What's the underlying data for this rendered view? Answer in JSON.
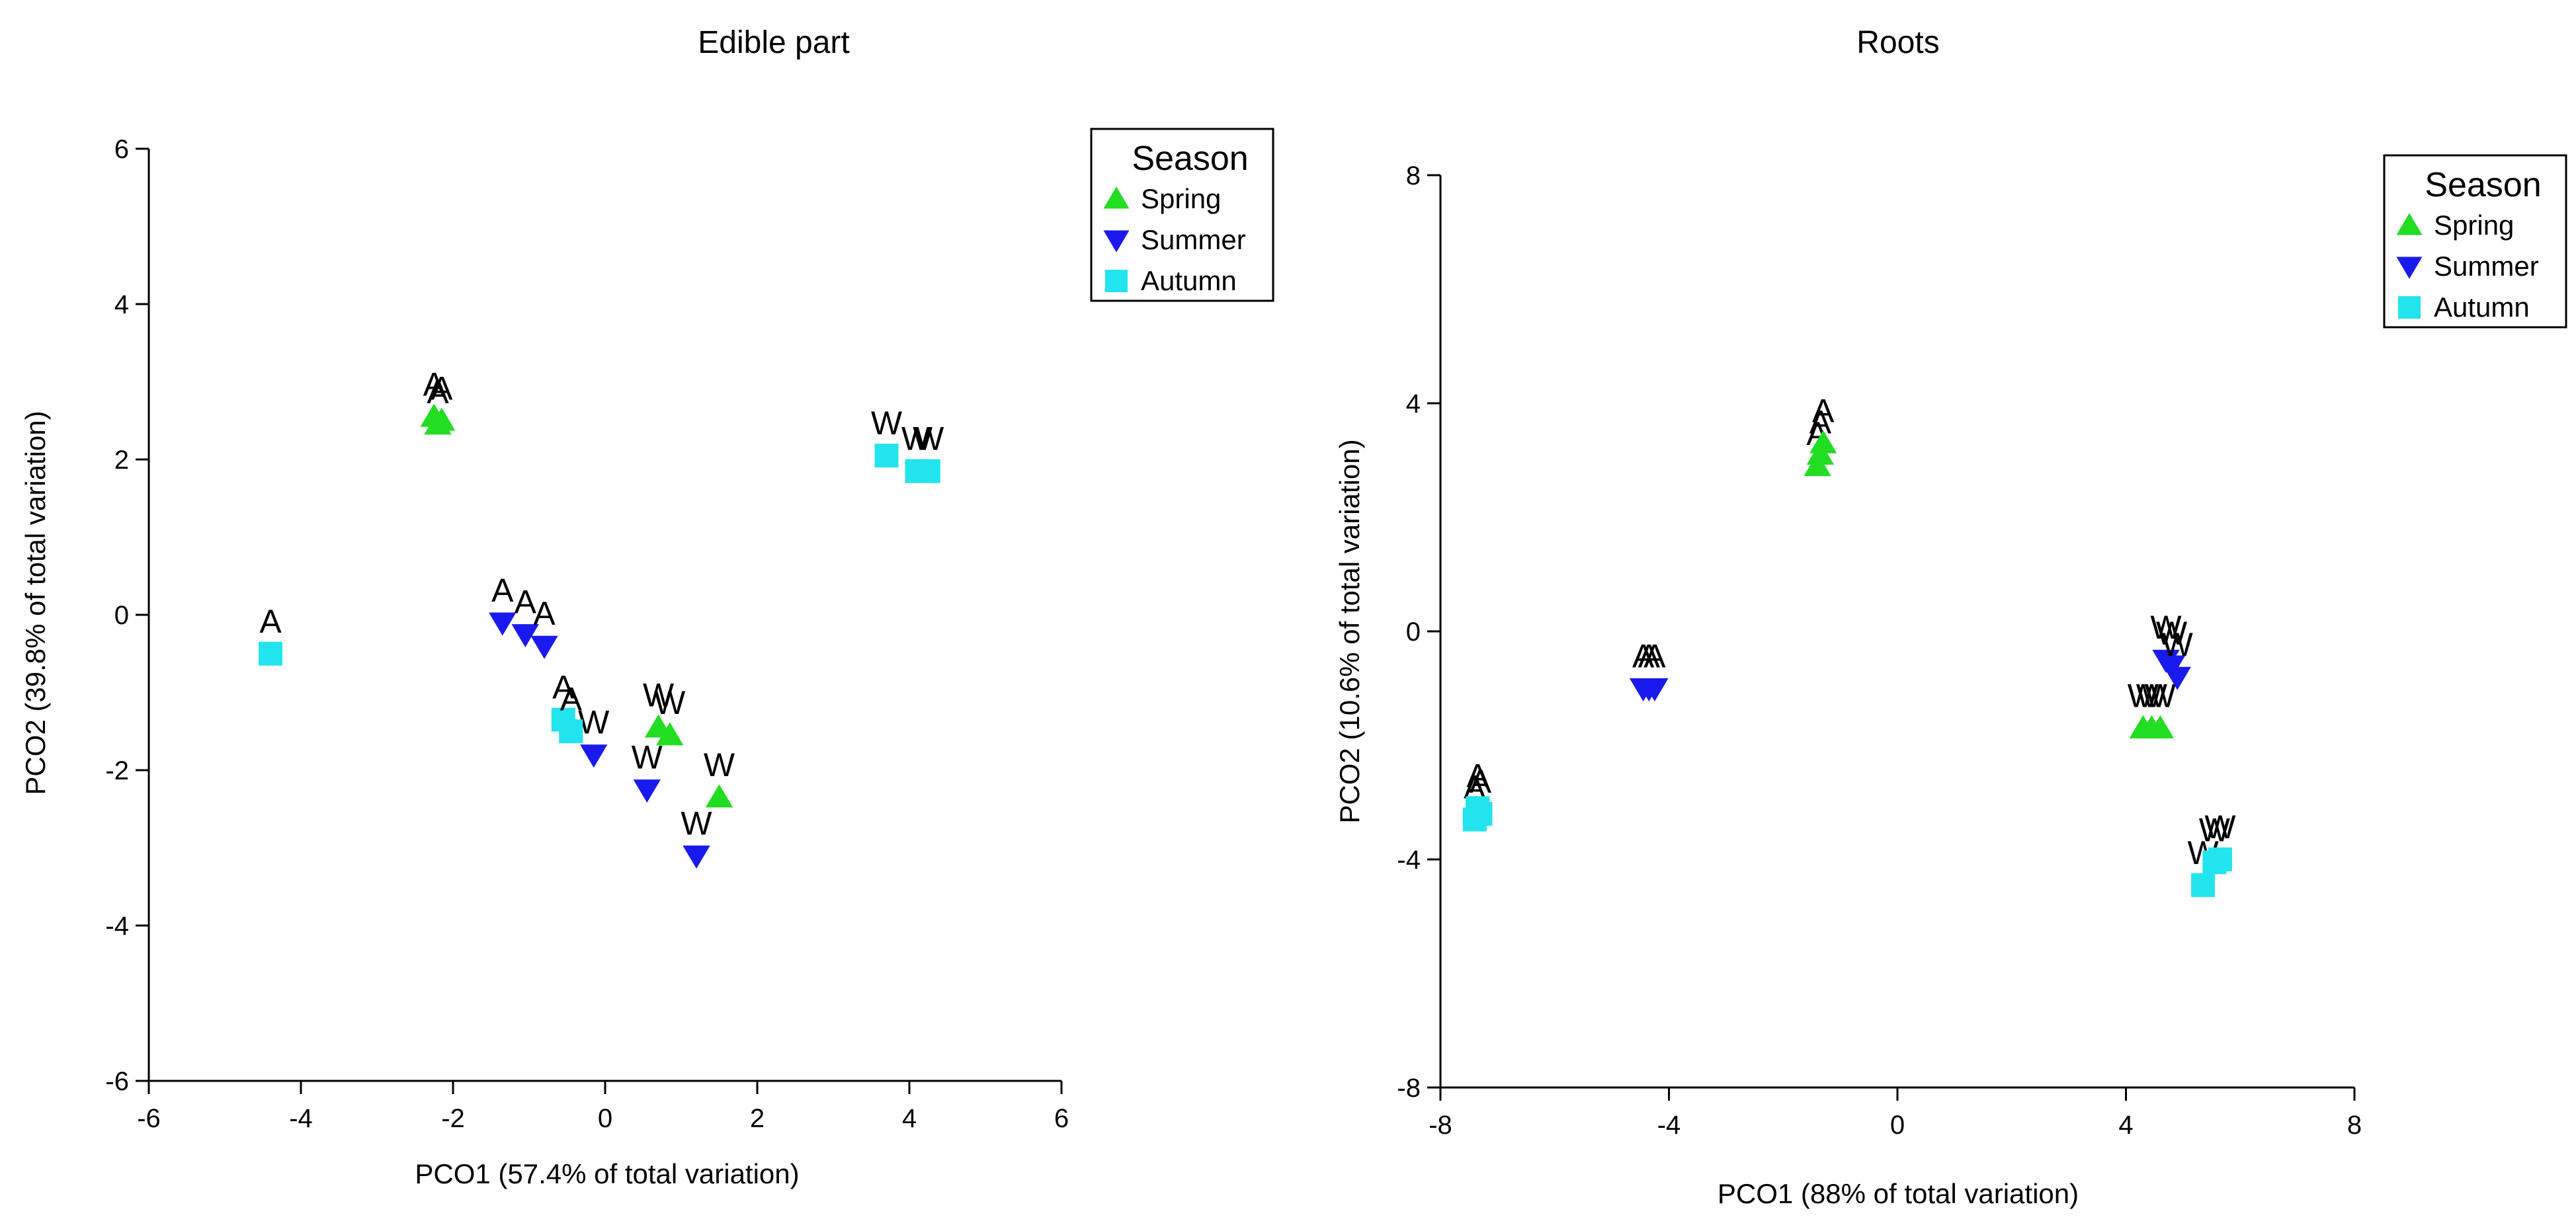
{
  "colors": {
    "spring": "#22dd22",
    "summer": "#1a1aee",
    "autumn": "#22e4ee"
  },
  "chart_data": [
    {
      "type": "scatter",
      "title": "Edible part",
      "xlabel": "PCO1 (57.4% of total variation)",
      "ylabel": "PCO2 (39.8% of total variation)",
      "xlim": [
        -6,
        6
      ],
      "ylim": [
        -6,
        6
      ],
      "xticks": [
        -6,
        -4,
        -2,
        0,
        2,
        4,
        6
      ],
      "yticks": [
        -6,
        -4,
        -2,
        0,
        2,
        4,
        6
      ],
      "xtick_labels": [
        "-6",
        "-4",
        "-2",
        "0",
        "2",
        "4",
        "6"
      ],
      "ytick_labels": [
        "-6",
        "-4",
        "-2",
        "0",
        "2",
        "4",
        "6"
      ],
      "legend": {
        "title": "Season",
        "placement": "top-right-outside",
        "entries": [
          {
            "label": "Spring",
            "marker": "triangle-up",
            "color_key": "spring"
          },
          {
            "label": "Summer",
            "marker": "triangle-down",
            "color_key": "summer"
          },
          {
            "label": "Autumn",
            "marker": "square",
            "color_key": "autumn"
          }
        ]
      },
      "series": [
        {
          "name": "Spring",
          "marker": "triangle-up",
          "color_key": "spring",
          "points": [
            {
              "x": -2.25,
              "y": 2.55,
              "label": "A"
            },
            {
              "x": -2.2,
              "y": 2.45,
              "label": "A"
            },
            {
              "x": -2.15,
              "y": 2.5,
              "label": "A"
            },
            {
              "x": 0.7,
              "y": -1.45,
              "label": "W"
            },
            {
              "x": 0.85,
              "y": -1.55,
              "label": "W"
            },
            {
              "x": 1.5,
              "y": -2.35,
              "label": "W"
            }
          ]
        },
        {
          "name": "Summer",
          "marker": "triangle-down",
          "color_key": "summer",
          "points": [
            {
              "x": -1.35,
              "y": -0.1,
              "label": "A"
            },
            {
              "x": -1.05,
              "y": -0.25,
              "label": "A"
            },
            {
              "x": -0.8,
              "y": -0.4,
              "label": "A"
            },
            {
              "x": -0.15,
              "y": -1.8,
              "label": "W"
            },
            {
              "x": 0.55,
              "y": -2.25,
              "label": "W"
            },
            {
              "x": 1.2,
              "y": -3.1,
              "label": "W"
            }
          ]
        },
        {
          "name": "Autumn",
          "marker": "square",
          "color_key": "autumn",
          "points": [
            {
              "x": -4.4,
              "y": -0.5,
              "label": "A"
            },
            {
              "x": -0.55,
              "y": -1.35,
              "label": "A"
            },
            {
              "x": -0.45,
              "y": -1.5,
              "label": "A"
            },
            {
              "x": 3.7,
              "y": 2.05,
              "label": "W"
            },
            {
              "x": 4.1,
              "y": 1.85,
              "label": "W"
            },
            {
              "x": 4.25,
              "y": 1.85,
              "label": "W"
            }
          ]
        }
      ]
    },
    {
      "type": "scatter",
      "title": "Roots",
      "xlabel": "PCO1 (88% of total variation)",
      "ylabel": "PCO2 (10.6% of total variation)",
      "xlim": [
        -8,
        8
      ],
      "ylim": [
        -8,
        8
      ],
      "xticks": [
        -8,
        -4,
        0,
        4,
        8
      ],
      "yticks": [
        -8,
        -4,
        0,
        4,
        8
      ],
      "xtick_labels": [
        "-8",
        "-4",
        "0",
        "4",
        "8"
      ],
      "ytick_labels": [
        "-8",
        "-4",
        "0",
        "4",
        "8"
      ],
      "legend": {
        "title": "Season",
        "placement": "top-right-inside",
        "entries": [
          {
            "label": "Spring",
            "marker": "triangle-up",
            "color_key": "spring"
          },
          {
            "label": "Summer",
            "marker": "triangle-down",
            "color_key": "summer"
          },
          {
            "label": "Autumn",
            "marker": "square",
            "color_key": "autumn"
          }
        ]
      },
      "series": [
        {
          "name": "Spring",
          "marker": "triangle-up",
          "color_key": "spring",
          "points": [
            {
              "x": -1.4,
              "y": 2.9,
              "label": "A"
            },
            {
              "x": -1.35,
              "y": 3.1,
              "label": "A"
            },
            {
              "x": -1.3,
              "y": 3.3,
              "label": "A"
            },
            {
              "x": 4.3,
              "y": -1.7,
              "label": "W"
            },
            {
              "x": 4.45,
              "y": -1.7,
              "label": "W"
            },
            {
              "x": 4.6,
              "y": -1.7,
              "label": "W"
            }
          ]
        },
        {
          "name": "Summer",
          "marker": "triangle-down",
          "color_key": "summer",
          "points": [
            {
              "x": -4.45,
              "y": -1.0,
              "label": "A"
            },
            {
              "x": -4.35,
              "y": -1.0,
              "label": "A"
            },
            {
              "x": -4.25,
              "y": -1.0,
              "label": "A"
            },
            {
              "x": 4.7,
              "y": -0.5,
              "label": "W"
            },
            {
              "x": 4.8,
              "y": -0.6,
              "label": "W"
            },
            {
              "x": 4.9,
              "y": -0.8,
              "label": "W"
            }
          ]
        },
        {
          "name": "Autumn",
          "marker": "square",
          "color_key": "autumn",
          "points": [
            {
              "x": -7.4,
              "y": -3.3,
              "label": "A"
            },
            {
              "x": -7.35,
              "y": -3.1,
              "label": "A"
            },
            {
              "x": -7.3,
              "y": -3.2,
              "label": "A"
            },
            {
              "x": 5.35,
              "y": -4.45,
              "label": "W"
            },
            {
              "x": 5.55,
              "y": -4.05,
              "label": "W"
            },
            {
              "x": 5.65,
              "y": -4.0,
              "label": "W"
            }
          ]
        }
      ]
    }
  ]
}
